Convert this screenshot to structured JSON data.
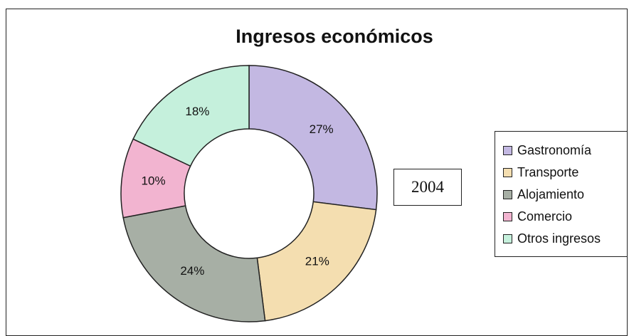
{
  "chart_data": {
    "type": "pie",
    "title": "Ingresos económicos",
    "annotation": "2004",
    "legend_position": "right",
    "categories": [
      "Gastronomía",
      "Transporte",
      "Alojamiento",
      "Comercio",
      "Otros ingresos"
    ],
    "values": [
      27,
      21,
      24,
      10,
      18
    ],
    "labels": [
      "27%",
      "21%",
      "24%",
      "10%",
      "18%"
    ],
    "colors": [
      "#c3b8e2",
      "#f4deb0",
      "#a7afa5",
      "#f2b4d0",
      "#c5f0dc"
    ],
    "style": "doughnut"
  }
}
